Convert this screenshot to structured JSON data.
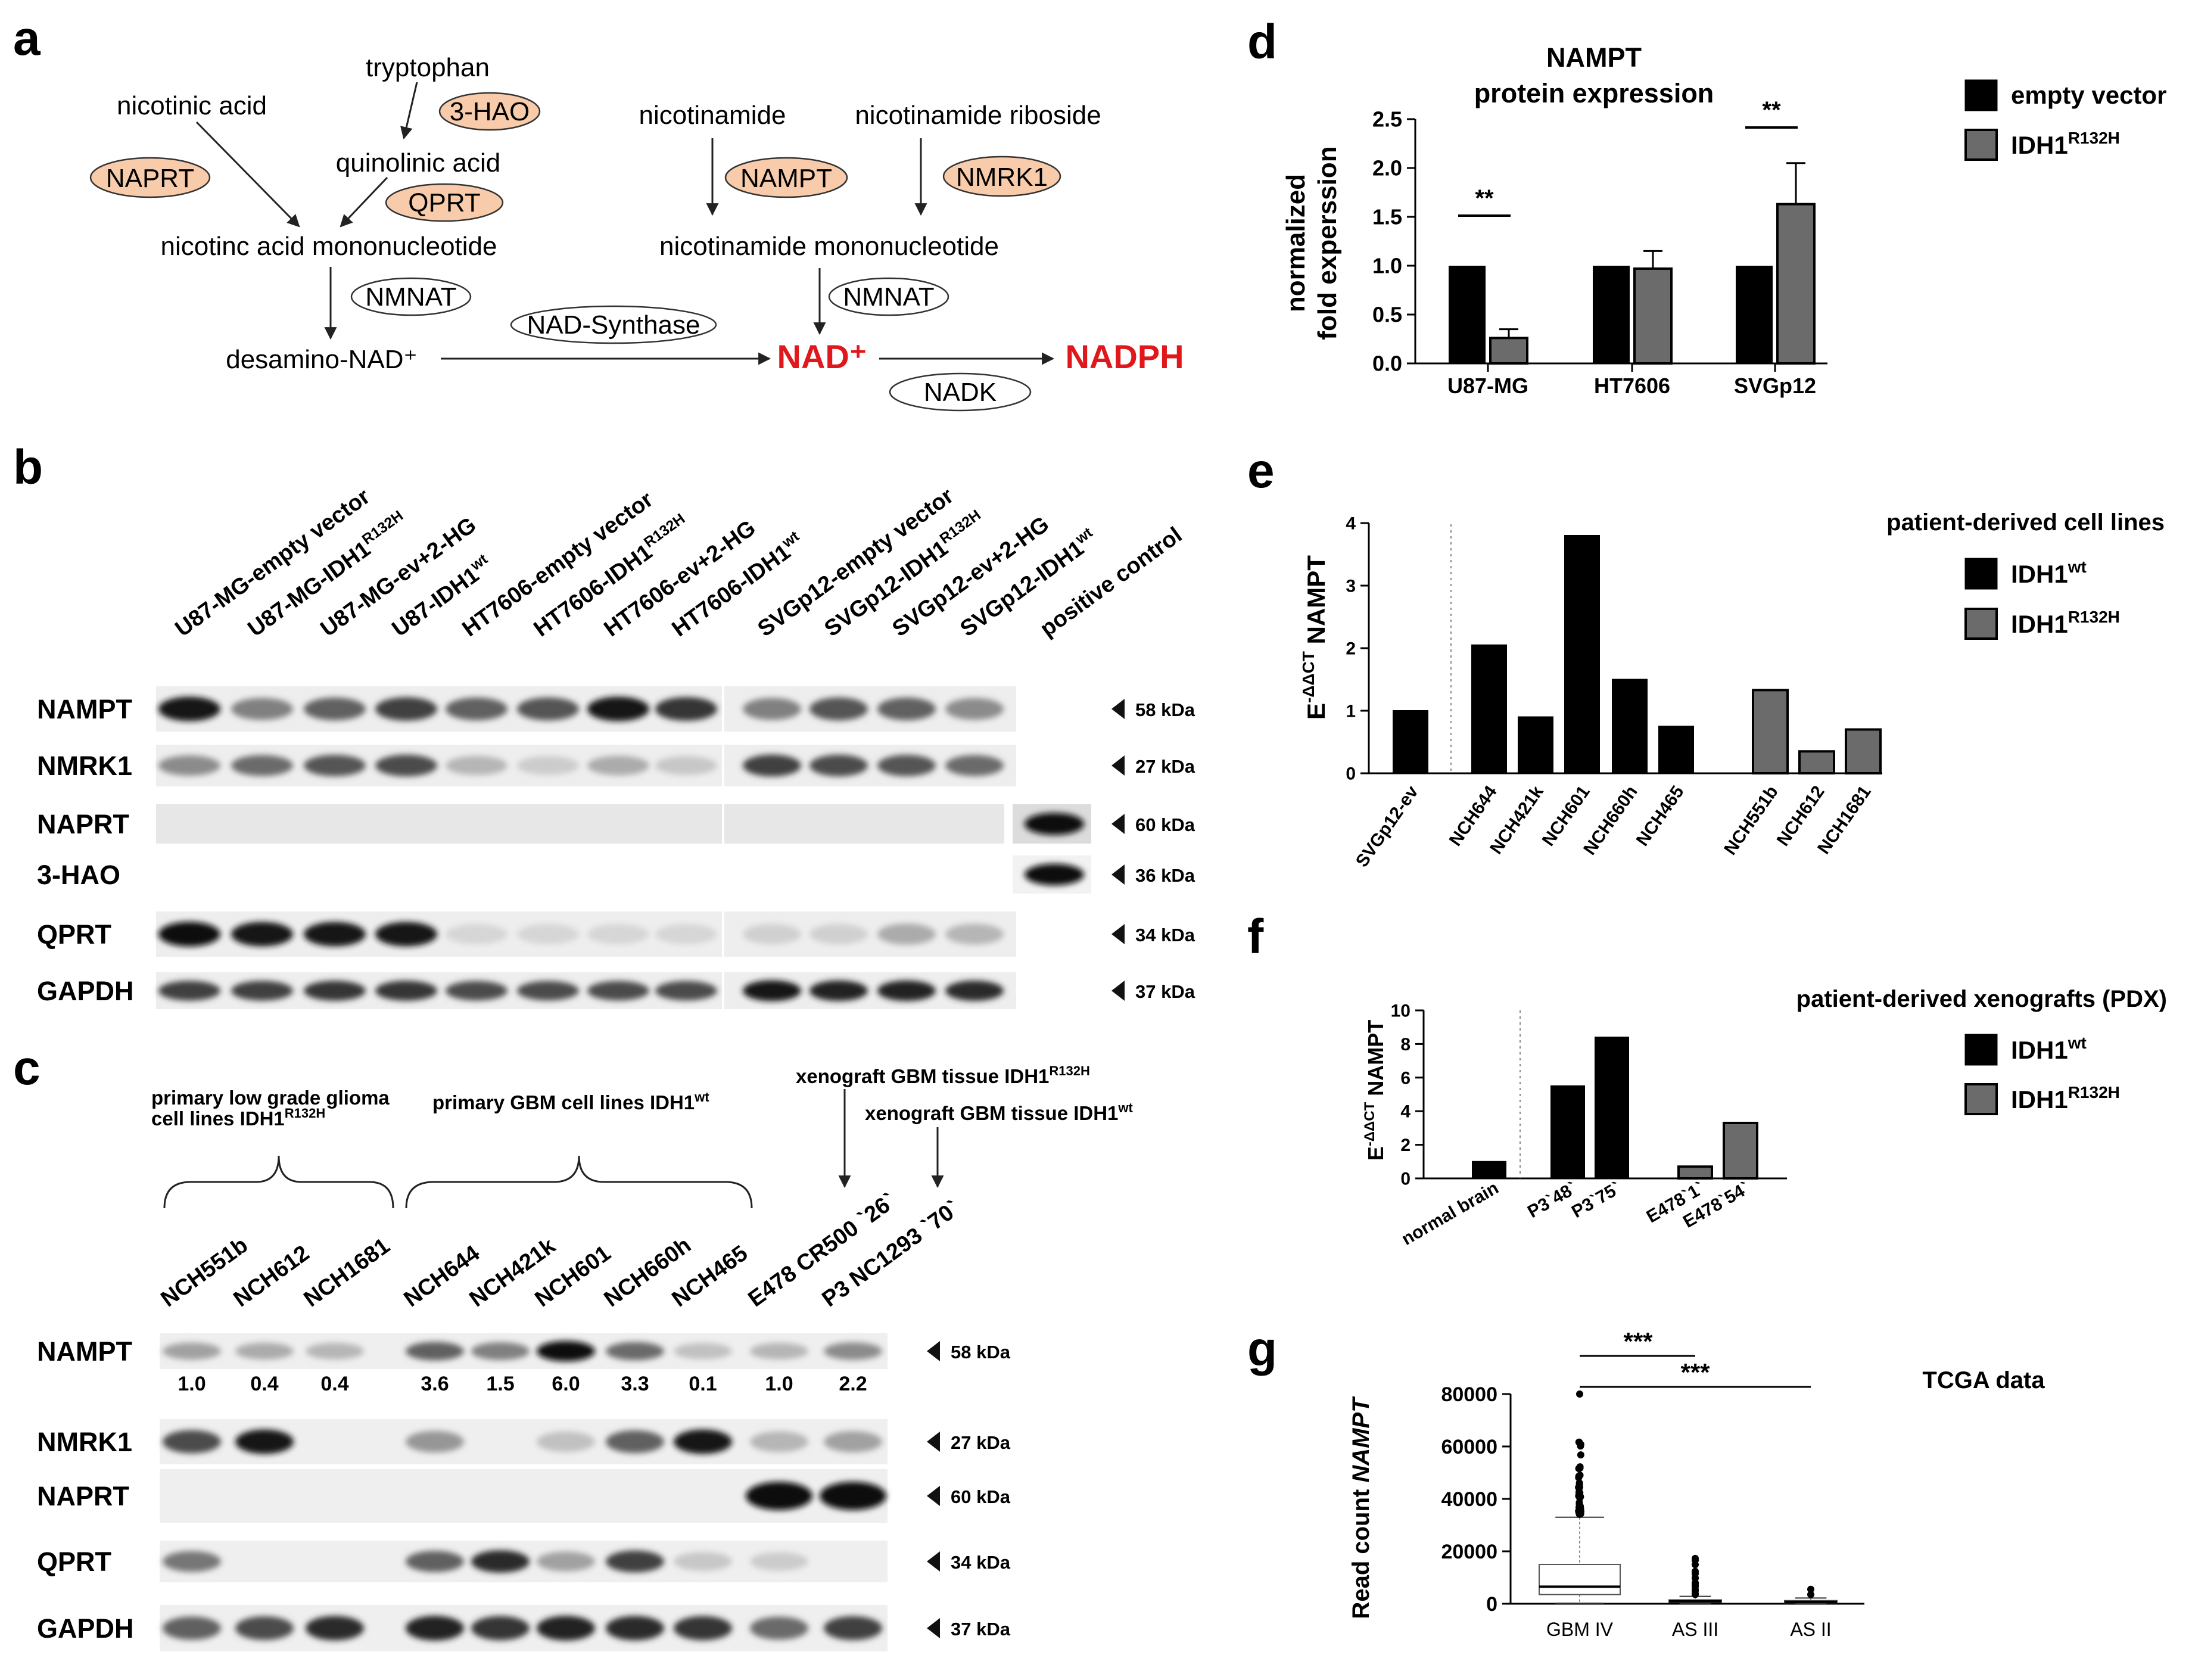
{
  "panel_letters": [
    "a",
    "b",
    "c",
    "d",
    "e",
    "f",
    "g"
  ],
  "pathway": {
    "tryptophan": "tryptophan",
    "nicotinic_acid": "nicotinic acid",
    "quinolinic_acid": "quinolinic acid",
    "naamn": "nicotinc acid mononucleotide",
    "desamino_nad": "desamino-NAD⁺",
    "nicotinamide": "nicotinamide",
    "nicotinamide_riboside": "nicotinamide riboside",
    "nmn": "nicotinamide mononucleotide",
    "nad": "NAD⁺",
    "nadph": "NADPH",
    "enzymes": {
      "hao": "3-HAO",
      "naprt": "NAPRT",
      "qprt": "QPRT",
      "nmnat": "NMNAT",
      "nad_synthase": "NAD-Synthase",
      "nampt": "NAMPT",
      "nmrk1": "NMRK1",
      "nadk": "NADK"
    },
    "colors": {
      "enzyme_fill": "#f8ccaa",
      "product": "#e0181b"
    }
  },
  "blot_b": {
    "lanes": [
      {
        "base": "U87-MG-empty vector",
        "sup": ""
      },
      {
        "base": "U87-MG-IDH1",
        "sup": "R132H"
      },
      {
        "base": "U87-MG-ev+2-HG",
        "sup": ""
      },
      {
        "base": "U87-IDH1",
        "sup": "wt"
      },
      {
        "base": "HT7606-empty vector",
        "sup": ""
      },
      {
        "base": "HT7606-IDH1",
        "sup": "R132H"
      },
      {
        "base": "HT7606-ev+2-HG",
        "sup": ""
      },
      {
        "base": "HT7606-IDH1",
        "sup": "wt"
      },
      {
        "base": "SVGp12-empty vector",
        "sup": ""
      },
      {
        "base": "SVGp12-IDH1",
        "sup": "R132H"
      },
      {
        "base": "SVGp12-ev+2-HG",
        "sup": ""
      },
      {
        "base": "SVGp12-IDH1",
        "sup": "wt"
      },
      {
        "base": "positive control",
        "sup": ""
      }
    ],
    "rows": [
      {
        "label": "NAMPT",
        "kda": "58 kDa"
      },
      {
        "label": "NMRK1",
        "kda": "27 kDa"
      },
      {
        "label": "NAPRT",
        "kda": "60 kDa"
      },
      {
        "label": "3-HAO",
        "kda": "36 kDa"
      },
      {
        "label": "QPRT",
        "kda": "34 kDa"
      },
      {
        "label": "GAPDH",
        "kda": "37 kDa"
      }
    ]
  },
  "blot_c": {
    "group_lgg": "primary low grade glioma",
    "group_lgg_line2": "cell lines IDH1",
    "group_lgg_sup": "R132H",
    "group_gbm": "primary GBM cell lines IDH1",
    "group_gbm_sup": "wt",
    "xeno_mut": "xenograft GBM tissue IDH1",
    "xeno_mut_sup": "R132H",
    "xeno_wt": "xenograft GBM tissue IDH1",
    "xeno_wt_sup": "wt",
    "lanes": [
      "NCH551b",
      "NCH612",
      "NCH1681",
      "NCH644",
      "NCH421k",
      "NCH601",
      "NCH660h",
      "NCH465",
      "E478 CR500 `26`",
      "P3 NC1293 `70`"
    ],
    "nampt_quant": [
      "1.0",
      "0.4",
      "0.4",
      "3.6",
      "1.5",
      "6.0",
      "3.3",
      "0.1",
      "1.0",
      "2.2"
    ],
    "rows": [
      {
        "label": "NAMPT",
        "kda": "58 kDa"
      },
      {
        "label": "NMRK1",
        "kda": "27 kDa"
      },
      {
        "label": "NAPRT",
        "kda": "60 kDa"
      },
      {
        "label": "QPRT",
        "kda": "34 kDa"
      },
      {
        "label": "GAPDH",
        "kda": "37 kDa"
      }
    ]
  },
  "legend_d": {
    "empty_vector": "empty vector",
    "idh1": "IDH1",
    "idh1_sup": "R132H"
  },
  "legend_e": {
    "wt": "IDH1",
    "wt_sup": "wt",
    "mut": "IDH1",
    "mut_sup": "R132H"
  },
  "legend_f": {
    "wt": "IDH1",
    "wt_sup": "wt",
    "mut": "IDH1",
    "mut_sup": "R132H"
  },
  "titles": {
    "e": "patient-derived cell lines",
    "f": "patient-derived xenografts (PDX)",
    "g": "TCGA data"
  },
  "colors": {
    "black_bar": "#000000",
    "grey_bar": "#6b6b6b"
  },
  "chart_data": [
    {
      "panel": "d",
      "type": "bar",
      "title": "NAMPT protein expression",
      "ylabel": "normalized fold experssion",
      "ylim": [
        0,
        2.5
      ],
      "yticks": [
        "0.0",
        "0.5",
        "1.0",
        "1.5",
        "2.0",
        "2.5"
      ],
      "categories": [
        "U87-MG",
        "HT7606",
        "SVGp12"
      ],
      "series": [
        {
          "name": "empty vector",
          "values": [
            1.0,
            1.0,
            1.0
          ]
        },
        {
          "name": "IDH1R132H",
          "values": [
            0.26,
            0.97,
            1.63
          ],
          "errors": [
            0.09,
            0.18,
            0.42
          ]
        }
      ],
      "significance": [
        "**",
        "**"
      ]
    },
    {
      "panel": "e",
      "type": "bar",
      "ylabel": "E-ΔΔCT NAMPT",
      "ylim": [
        0,
        4
      ],
      "yticks": [
        "0",
        "1",
        "2",
        "3",
        "4"
      ],
      "categories": [
        "SVGp12-ev",
        "NCH644",
        "NCH421k",
        "NCH601",
        "NCH660h",
        "NCH465",
        "NCH551b",
        "NCH612",
        "NCH1681"
      ],
      "values": [
        1.0,
        2.05,
        0.9,
        3.8,
        1.5,
        0.75,
        1.33,
        0.35,
        0.7
      ],
      "groups": [
        "ref",
        "wt",
        "wt",
        "wt",
        "wt",
        "wt",
        "mut",
        "mut",
        "mut"
      ]
    },
    {
      "panel": "f",
      "type": "bar",
      "ylabel": "E-ΔΔCT NAMPT",
      "ylim": [
        0,
        10
      ],
      "yticks": [
        "0",
        "2",
        "4",
        "6",
        "8",
        "10"
      ],
      "categories": [
        "normal brain",
        "P3`48`",
        "P3`75`",
        "E478`1`",
        "E478`54`"
      ],
      "values": [
        1.0,
        5.5,
        8.4,
        0.7,
        3.3
      ],
      "groups": [
        "ref",
        "wt",
        "wt",
        "mut",
        "mut"
      ]
    },
    {
      "panel": "g",
      "type": "box",
      "ylabel": "Read count NAMPT",
      "ylim": [
        0,
        80000
      ],
      "yticks": [
        "0",
        "20000",
        "40000",
        "60000",
        "80000"
      ],
      "categories": [
        "GBM IV",
        "AS III",
        "AS II"
      ],
      "boxes": [
        {
          "q1": 3500,
          "median": 6500,
          "q3": 15000,
          "whisker_low": 200,
          "whisker_high": 33000
        },
        {
          "q1": 500,
          "median": 900,
          "q3": 1500,
          "whisker_low": 50,
          "whisker_high": 2800
        },
        {
          "q1": 400,
          "median": 700,
          "q3": 1200,
          "whisker_low": 50,
          "whisker_high": 2200
        }
      ],
      "significance": [
        "***",
        "***"
      ]
    }
  ]
}
